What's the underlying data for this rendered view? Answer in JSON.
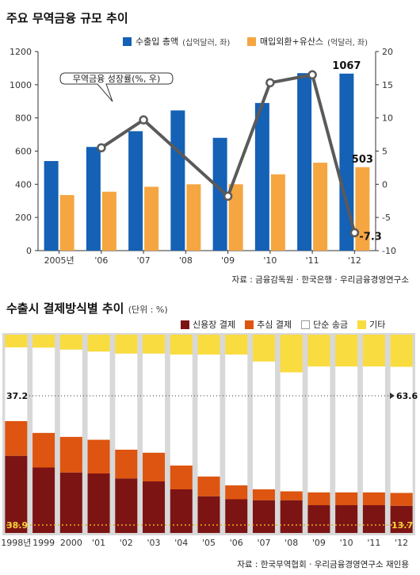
{
  "chart_data": [
    {
      "type": "bar",
      "title": "주요 무역금융 규모 추이",
      "categories": [
        "2005년",
        "'06",
        "'07",
        "'08",
        "'09",
        "'10",
        "'11",
        "'12"
      ],
      "series": [
        {
          "name": "수출입 총액",
          "unit_note": "(십억달러, 좌)",
          "axis": "left",
          "color": "#1461b5",
          "values": [
            540,
            625,
            720,
            845,
            680,
            890,
            1070,
            1067
          ]
        },
        {
          "name": "매입외환+유산스",
          "unit_note": "(억달러, 좌)",
          "axis": "left",
          "color": "#f5a641",
          "values": [
            335,
            355,
            385,
            400,
            400,
            460,
            530,
            503
          ]
        },
        {
          "name": "무역금융 성장률(%, 우)",
          "type": "line",
          "axis": "right",
          "color": "#5a5a5a",
          "values": [
            null,
            5.5,
            9.7,
            null,
            -1.8,
            15.3,
            16.5,
            -7.3
          ]
        }
      ],
      "ylim_left": [
        0,
        1200
      ],
      "ylim_right": [
        -10,
        20
      ],
      "yticks_left": [
        "0",
        "200",
        "400",
        "600",
        "800",
        "1000",
        "1200"
      ],
      "yticks_right": [
        "-10",
        "-5",
        "0",
        "5",
        "10",
        "15",
        "20"
      ],
      "data_labels": {
        "export_import_2012": "1067",
        "discount_2012": "503",
        "growth_2012": "-7.3"
      },
      "callout": "무역금융 성장률(%, 우)",
      "source": "자료 : 금융감독원 · 한국은행 · 우리금융경영연구소",
      "grid": false,
      "legend_position": "top"
    },
    {
      "type": "stacked_bar",
      "title": "수출시 결제방식별 추이",
      "unit": "(단위 : %)",
      "categories": [
        "1998년",
        "1999",
        "2000",
        "'01",
        "'02",
        "'03",
        "'04",
        "'05",
        "'06",
        "'07",
        "'08",
        "'09",
        "'10",
        "'11",
        "'12"
      ],
      "series": [
        {
          "name": "신용장 결제",
          "color": "#7c1414",
          "values": [
            38.9,
            33.0,
            30.5,
            30.0,
            27.5,
            26.0,
            22.0,
            18.5,
            17.0,
            16.5,
            16.5,
            14.0,
            14.0,
            14.0,
            13.7
          ]
        },
        {
          "name": "추심 결제",
          "color": "#dd5510",
          "values": [
            17.5,
            17.5,
            18.0,
            17.0,
            14.5,
            14.5,
            12.0,
            10.0,
            7.0,
            5.5,
            4.5,
            6.5,
            6.5,
            6.5,
            6.5
          ]
        },
        {
          "name": "단순 송금",
          "color": "#ffffff",
          "values": [
            37.2,
            43.0,
            44.0,
            44.5,
            48.5,
            50.0,
            56.0,
            61.5,
            66.0,
            64.5,
            60.0,
            63.5,
            63.5,
            63.5,
            63.6
          ]
        },
        {
          "name": "기타",
          "color": "#f9dc3f",
          "values": [
            6.4,
            6.5,
            7.5,
            8.5,
            9.5,
            9.5,
            10.0,
            10.0,
            10.0,
            13.5,
            19.0,
            16.0,
            16.0,
            16.0,
            16.2
          ]
        }
      ],
      "ylim": [
        0,
        100
      ],
      "data_labels": {
        "lc_1998": "38.9",
        "lc_2012": "13.7",
        "remit_1998": "37.2",
        "remit_2012": "63.6"
      },
      "source": "자료 : 한국무역협회 · 우리금융경영연구소 재인용",
      "legend_position": "top-right"
    }
  ]
}
